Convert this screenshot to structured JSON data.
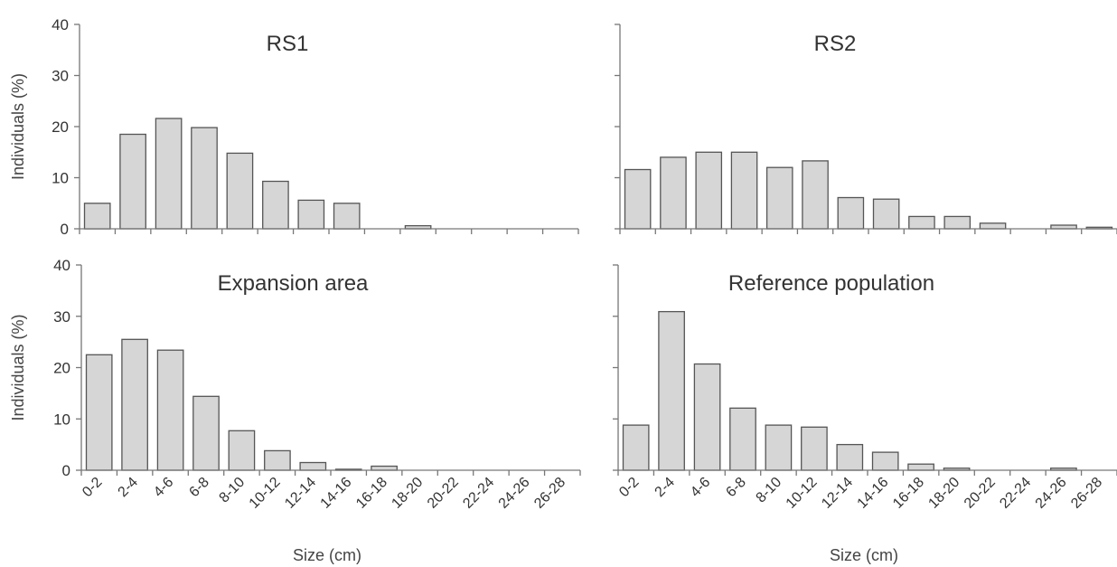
{
  "chart_data": [
    {
      "type": "bar",
      "title": "RS1",
      "ylabel": "Individuals (%)",
      "xlabel": "",
      "ylim": [
        0,
        40
      ],
      "yticks": [
        0,
        10,
        20,
        30,
        40
      ],
      "show_yticklabels": true,
      "show_xticklabels": false,
      "bar_color": "#d6d6d6",
      "categories": [
        "0-2",
        "2-4",
        "4-6",
        "6-8",
        "8-10",
        "10-12",
        "12-14",
        "14-16",
        "16-18",
        "18-20",
        "20-22",
        "22-24",
        "24-26",
        "26-28"
      ],
      "values": [
        5.0,
        18.5,
        21.6,
        19.8,
        14.8,
        9.3,
        5.6,
        5.0,
        0,
        0.6,
        0,
        0,
        0,
        0
      ]
    },
    {
      "type": "bar",
      "title": "RS2",
      "ylabel": "",
      "xlabel": "",
      "ylim": [
        0,
        40
      ],
      "yticks": [
        0,
        10,
        20,
        30,
        40
      ],
      "show_yticklabels": false,
      "show_xticklabels": false,
      "bar_color": "#d6d6d6",
      "categories": [
        "0-2",
        "2-4",
        "4-6",
        "6-8",
        "8-10",
        "10-12",
        "12-14",
        "14-16",
        "16-18",
        "18-20",
        "20-22",
        "22-24",
        "24-26",
        "26-28"
      ],
      "values": [
        11.6,
        14.0,
        15.0,
        15.0,
        12.0,
        13.3,
        6.1,
        5.8,
        2.4,
        2.4,
        1.1,
        0,
        0.7,
        0.3
      ]
    },
    {
      "type": "bar",
      "title": "Expansion area",
      "ylabel": "Individuals (%)",
      "xlabel": "Size (cm)",
      "ylim": [
        0,
        40
      ],
      "yticks": [
        0,
        10,
        20,
        30,
        40
      ],
      "show_yticklabels": true,
      "show_xticklabels": true,
      "bar_color": "#d6d6d6",
      "categories": [
        "0-2",
        "2-4",
        "4-6",
        "6-8",
        "8-10",
        "10-12",
        "12-14",
        "14-16",
        "16-18",
        "18-20",
        "20-22",
        "22-24",
        "24-26",
        "26-28"
      ],
      "values": [
        22.5,
        25.5,
        23.4,
        14.4,
        7.7,
        3.8,
        1.5,
        0.2,
        0.8,
        0,
        0,
        0,
        0,
        0
      ]
    },
    {
      "type": "bar",
      "title": "Reference population",
      "ylabel": "",
      "xlabel": "Size (cm)",
      "ylim": [
        0,
        40
      ],
      "yticks": [
        0,
        10,
        20,
        30,
        40
      ],
      "show_yticklabels": false,
      "show_xticklabels": true,
      "bar_color": "#d6d6d6",
      "categories": [
        "0-2",
        "2-4",
        "4-6",
        "6-8",
        "8-10",
        "10-12",
        "12-14",
        "14-16",
        "16-18",
        "18-20",
        "20-22",
        "22-24",
        "24-26",
        "26-28"
      ],
      "values": [
        8.8,
        30.9,
        20.7,
        12.1,
        8.8,
        8.4,
        5.0,
        3.5,
        1.2,
        0.4,
        0,
        0,
        0.4,
        0
      ]
    }
  ]
}
